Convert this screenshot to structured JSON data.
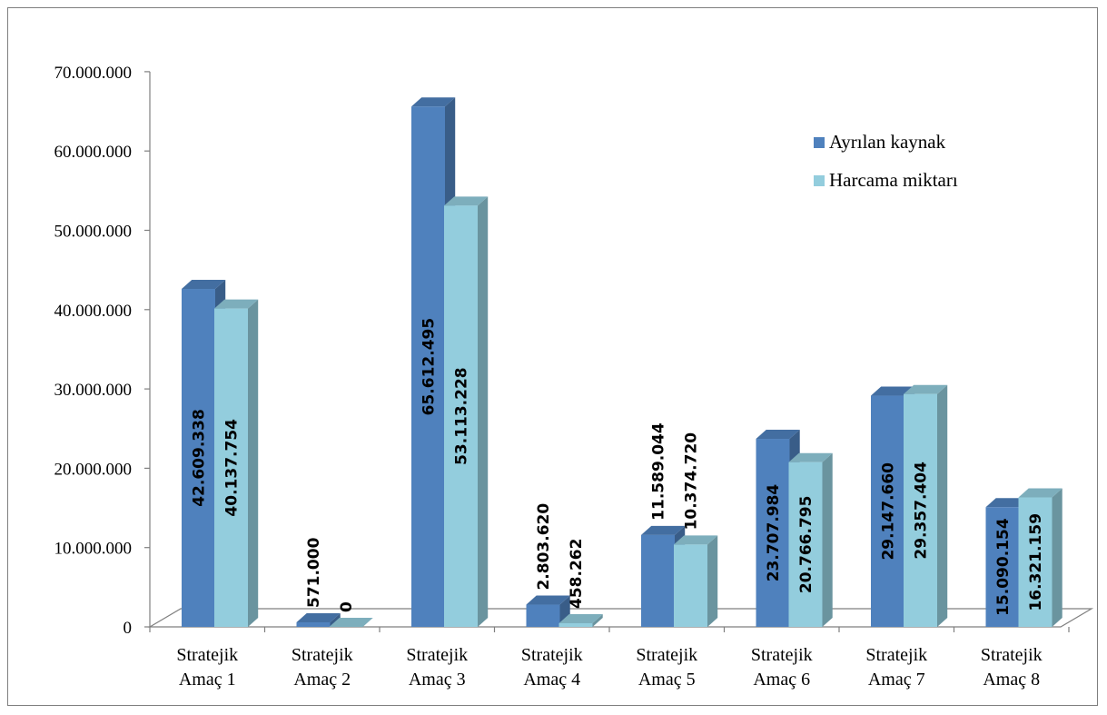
{
  "chart_data": {
    "type": "bar",
    "style": "3d-clustered-column",
    "categories": [
      "Stratejik Amaç 1",
      "Stratejik Amaç 2",
      "Stratejik Amaç 3",
      "Stratejik Amaç 4",
      "Stratejik Amaç 5",
      "Stratejik Amaç 6",
      "Stratejik Amaç 7",
      "Stratejik Amaç 8"
    ],
    "category_lines": [
      [
        "Stratejik",
        "Amaç 1"
      ],
      [
        "Stratejik",
        "Amaç 2"
      ],
      [
        "Stratejik",
        "Amaç 3"
      ],
      [
        "Stratejik",
        "Amaç 4"
      ],
      [
        "Stratejik",
        "Amaç 5"
      ],
      [
        "Stratejik",
        "Amaç 6"
      ],
      [
        "Stratejik",
        "Amaç 7"
      ],
      [
        "Stratejik",
        "Amaç 8"
      ]
    ],
    "series": [
      {
        "name": "Ayrılan kaynak",
        "color": "#4f81bd",
        "values": [
          42609338,
          571000,
          65612495,
          2803620,
          11589044,
          23707984,
          29147660,
          15090154
        ],
        "labels": [
          "42.609.338",
          "571.000",
          "65.612.495",
          "2.803.620",
          "11.589.044",
          "23.707.984",
          "29.147.660",
          "15.090.154"
        ]
      },
      {
        "name": "Harcama miktarı",
        "color": "#93cddd",
        "values": [
          40137754,
          0,
          53113228,
          458262,
          10374720,
          20766795,
          29357404,
          16321159
        ],
        "labels": [
          "40.137.754",
          "0",
          "53.113.228",
          "458.262",
          "10.374.720",
          "20.766.795",
          "29.357.404",
          "16.321.159"
        ]
      }
    ],
    "yticks": [
      "0",
      "10.000.000",
      "20.000.000",
      "30.000.000",
      "40.000.000",
      "50.000.000",
      "60.000.000",
      "70.000.000"
    ],
    "ylim": [
      0,
      70000000
    ],
    "grid": false,
    "legend": "top-right",
    "title": "",
    "xlabel": "",
    "ylabel": ""
  }
}
